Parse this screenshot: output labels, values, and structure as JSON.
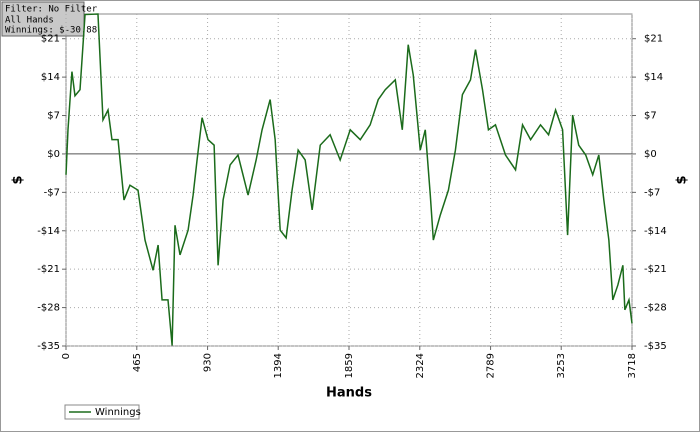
{
  "chart_data": {
    "type": "line",
    "annotations": [
      "Filter: No Filter",
      "All Hands",
      "Winnings: $-30.88"
    ],
    "xlabel": "Hands",
    "ylabel": "$",
    "xlim": [
      0,
      3718
    ],
    "ylim": [
      -35,
      25.5
    ],
    "xticks": [
      0,
      465,
      930,
      1394,
      1859,
      2324,
      2789,
      3253,
      3718
    ],
    "yticks": [
      {
        "value": -35,
        "label": "-$35"
      },
      {
        "value": -28,
        "label": "-$28"
      },
      {
        "value": -21,
        "label": "-$21"
      },
      {
        "value": -14,
        "label": "-$14"
      },
      {
        "value": -7,
        "label": "-$7"
      },
      {
        "value": 0,
        "label": "$0"
      },
      {
        "value": 7,
        "label": "$7"
      },
      {
        "value": 14,
        "label": "$14"
      },
      {
        "value": 21,
        "label": "$21"
      }
    ],
    "grid": true,
    "legend": "bottom-left",
    "x": [
      0,
      13,
      39,
      59,
      92,
      125,
      210,
      243,
      276,
      302,
      342,
      381,
      420,
      473,
      519,
      572,
      605,
      631,
      670,
      697,
      716,
      749,
      802,
      835,
      861,
      894,
      933,
      973,
      999,
      1032,
      1078,
      1130,
      1196,
      1249,
      1288,
      1341,
      1374,
      1407,
      1446,
      1485,
      1525,
      1571,
      1617,
      1670,
      1735,
      1801,
      1867,
      1933,
      1998,
      2051,
      2097,
      2163,
      2209,
      2248,
      2281,
      2327,
      2360,
      2393,
      2413,
      2459,
      2512,
      2558,
      2604,
      2657,
      2690,
      2736,
      2775,
      2821,
      2887,
      2953,
      2999,
      3052,
      3117,
      3170,
      3216,
      3262,
      3295,
      3328,
      3368,
      3414,
      3460,
      3500,
      3533,
      3566,
      3592,
      3625,
      3658,
      3671,
      3698,
      3718
    ],
    "series": [
      {
        "name": "Winnings",
        "color": "#1b6b1b",
        "values": [
          -3.8,
          4.4,
          15,
          10.6,
          11.7,
          25.4,
          25.5,
          6.2,
          8,
          2.6,
          2.6,
          -8.4,
          -5.7,
          -6.6,
          -15.7,
          -21.2,
          -16.6,
          -26.6,
          -26.6,
          -34.9,
          -13,
          -18.4,
          -13.9,
          -7.5,
          -1.1,
          6.6,
          2.6,
          1.6,
          -20.3,
          -8.4,
          -2,
          -0.2,
          -7.5,
          -1.1,
          4.4,
          9.9,
          2.6,
          -13.9,
          -15.3,
          -6.6,
          0.7,
          -1.1,
          -10.2,
          1.6,
          3.5,
          -1.1,
          4.4,
          2.6,
          5.3,
          9.9,
          11.7,
          13.5,
          4.4,
          19.9,
          14.4,
          0.7,
          4.4,
          -7.5,
          -15.7,
          -11.1,
          -6.6,
          0.7,
          10.8,
          13.5,
          19,
          11.7,
          4.4,
          5.3,
          -0.2,
          -2.9,
          5.3,
          2.6,
          5.3,
          3.5,
          8,
          4.4,
          -14.8,
          7.1,
          1.6,
          -0.2,
          -3.8,
          -0.2,
          -8.4,
          -15.7,
          -26.6,
          -23.9,
          -20.3,
          -28.4,
          -26.6,
          -30.88
        ]
      }
    ]
  }
}
